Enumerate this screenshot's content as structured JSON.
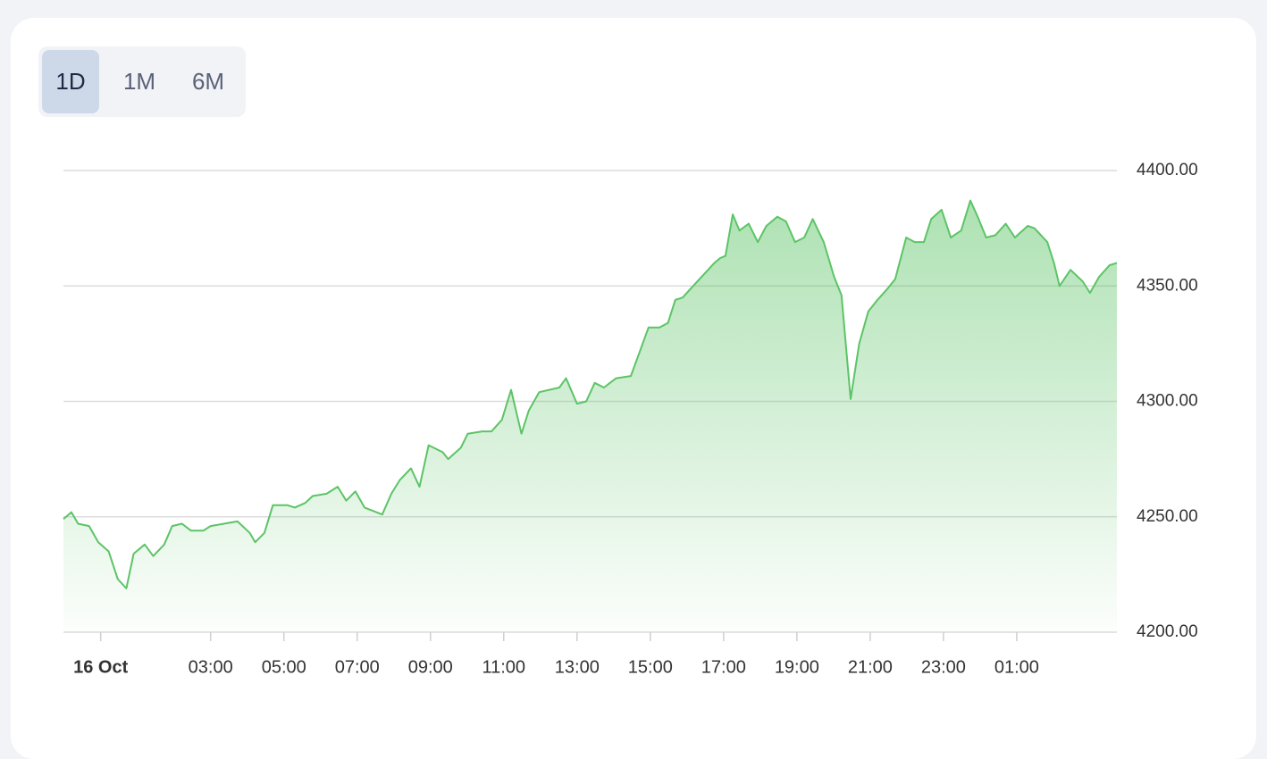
{
  "controls": {
    "buttons": [
      "1D",
      "1M",
      "6M"
    ],
    "active": 0
  },
  "chart_data": {
    "type": "area",
    "color": "#5cc466",
    "grid": true,
    "x": [
      "15 Oct 22:59",
      "15 Oct 23:12",
      "15 Oct 23:23",
      "15 Oct 23:41",
      "15 Oct 23:56",
      "16 Oct 00:13",
      "16 Oct 00:28",
      "16 Oct 00:42",
      "16 Oct 00:54",
      "16 Oct 01:12",
      "16 Oct 01:26",
      "16 Oct 01:44",
      "16 Oct 01:57",
      "16 Oct 02:13",
      "16 Oct 02:28",
      "16 Oct 02:48",
      "16 Oct 03:00",
      "16 Oct 03:44",
      "16 Oct 04:04",
      "16 Oct 04:13",
      "16 Oct 04:28",
      "16 Oct 04:42",
      "16 Oct 05:06",
      "16 Oct 05:18",
      "16 Oct 05:35",
      "16 Oct 05:47",
      "16 Oct 06:10",
      "16 Oct 06:28",
      "16 Oct 06:42",
      "16 Oct 06:57",
      "16 Oct 07:12",
      "16 Oct 07:41",
      "16 Oct 07:56",
      "16 Oct 08:10",
      "16 Oct 08:28",
      "16 Oct 08:42",
      "16 Oct 08:57",
      "16 Oct 09:20",
      "16 Oct 09:29",
      "16 Oct 09:50",
      "16 Oct 10:01",
      "16 Oct 10:25",
      "16 Oct 10:40",
      "16 Oct 10:57",
      "16 Oct 11:12",
      "16 Oct 11:29",
      "16 Oct 11:41",
      "16 Oct 11:58",
      "16 Oct 12:31",
      "16 Oct 12:42",
      "16 Oct 13:00",
      "16 Oct 13:15",
      "16 Oct 13:29",
      "16 Oct 13:44",
      "16 Oct 14:04",
      "16 Oct 14:28",
      "16 Oct 14:42",
      "16 Oct 14:57",
      "16 Oct 15:15",
      "16 Oct 15:29",
      "16 Oct 15:41",
      "16 Oct 15:53",
      "16 Oct 16:10",
      "16 Oct 16:45",
      "16 Oct 16:54",
      "16 Oct 17:03",
      "16 Oct 17:15",
      "16 Oct 17:26",
      "16 Oct 17:41",
      "16 Oct 17:56",
      "16 Oct 18:10",
      "16 Oct 18:28",
      "16 Oct 18:42",
      "16 Oct 18:57",
      "16 Oct 19:12",
      "16 Oct 19:26",
      "16 Oct 19:44",
      "16 Oct 20:01",
      "16 Oct 20:13",
      "16 Oct 20:28",
      "16 Oct 20:42",
      "16 Oct 20:57",
      "16 Oct 21:12",
      "16 Oct 21:29",
      "16 Oct 21:41",
      "16 Oct 21:59",
      "16 Oct 22:13",
      "16 Oct 22:28",
      "16 Oct 22:40",
      "16 Oct 22:57",
      "16 Oct 23:12",
      "16 Oct 23:29",
      "16 Oct 23:44",
      "16 Oct 23:56",
      "17 Oct 00:10",
      "17 Oct 00:25",
      "17 Oct 00:42",
      "17 Oct 00:57",
      "17 Oct 01:18",
      "17 Oct 01:29",
      "17 Oct 01:50",
      "17 Oct 02:01",
      "17 Oct 02:10",
      "17 Oct 02:28",
      "17 Oct 02:48",
      "17 Oct 03:00",
      "17 Oct 03:15",
      "17 Oct 03:32",
      "17 Oct 03:44"
    ],
    "values": [
      4249,
      4252,
      4247,
      4246,
      4239,
      4235,
      4223,
      4219,
      4234,
      4238,
      4233,
      4238,
      4246,
      4247,
      4244,
      4244,
      4246,
      4248,
      4243,
      4239,
      4243,
      4255,
      4255,
      4254,
      4256,
      4259,
      4260,
      4263,
      4257,
      4261,
      4254,
      4251,
      4260,
      4266,
      4271,
      4263,
      4281,
      4278,
      4275,
      4280,
      4286,
      4287,
      4287,
      4292,
      4305,
      4286,
      4296,
      4304,
      4306,
      4310,
      4299,
      4300,
      4308,
      4306,
      4310,
      4311,
      4321,
      4332,
      4332,
      4334,
      4344,
      4345,
      4350,
      4360,
      4362,
      4363,
      4381,
      4374,
      4377,
      4369,
      4376,
      4380,
      4378,
      4369,
      4371,
      4379,
      4369,
      4354,
      4346,
      4301,
      4325,
      4339,
      4344,
      4349,
      4353,
      4371,
      4369,
      4369,
      4379,
      4383,
      4371,
      4374,
      4387,
      4380,
      4371,
      4372,
      4377,
      4371,
      4376,
      4375,
      4369,
      4360,
      4350,
      4357,
      4352,
      4347,
      4354,
      4359,
      4360
    ],
    "xlim": [
      "15 Oct 22:59",
      "17 Oct 03:44"
    ],
    "xticks": [
      {
        "value": "16 Oct 00:00",
        "label": "16 Oct"
      },
      {
        "value": "16 Oct 03:00",
        "label": "03:00"
      },
      {
        "value": "16 Oct 05:00",
        "label": "05:00"
      },
      {
        "value": "16 Oct 07:00",
        "label": "07:00"
      },
      {
        "value": "16 Oct 09:00",
        "label": "09:00"
      },
      {
        "value": "16 Oct 11:00",
        "label": "11:00"
      },
      {
        "value": "16 Oct 13:00",
        "label": "13:00"
      },
      {
        "value": "16 Oct 15:00",
        "label": "15:00"
      },
      {
        "value": "16 Oct 17:00",
        "label": "17:00"
      },
      {
        "value": "16 Oct 19:00",
        "label": "19:00"
      },
      {
        "value": "16 Oct 21:00",
        "label": "21:00"
      },
      {
        "value": "16 Oct 23:00",
        "label": "23:00"
      },
      {
        "value": "17 Oct 01:00",
        "label": "01:00"
      }
    ],
    "ylim": [
      4200,
      4400
    ],
    "yticks": [
      {
        "value": 4200,
        "label": "4200.00"
      },
      {
        "value": 4250,
        "label": "4250.00"
      },
      {
        "value": 4300,
        "label": "4300.00"
      },
      {
        "value": 4350,
        "label": "4350.00"
      },
      {
        "value": 4400,
        "label": "4400.00"
      }
    ]
  }
}
